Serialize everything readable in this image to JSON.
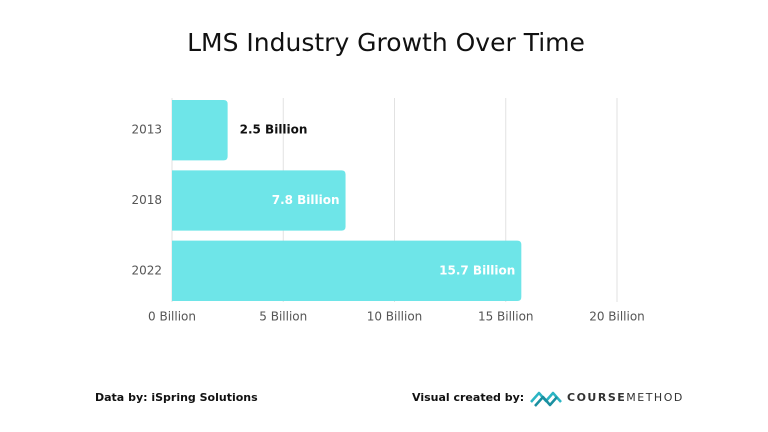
{
  "chart_data": {
    "type": "bar",
    "orientation": "horizontal",
    "title": "LMS Industry Growth Over Time",
    "categories": [
      "2013",
      "2018",
      "2022"
    ],
    "values": [
      2.5,
      7.8,
      15.7
    ],
    "value_labels": [
      "2.5 Billion",
      "7.8 Billion",
      "15.7 Billion"
    ],
    "color": "#6ee5e8",
    "xlim": [
      0,
      20
    ],
    "xticks": [
      {
        "value": 0,
        "label": "0 Billion"
      },
      {
        "value": 5,
        "label": "5 Billion"
      },
      {
        "value": 10,
        "label": "10 Billion"
      },
      {
        "value": 15,
        "label": "15 Billion"
      },
      {
        "value": 20,
        "label": "20 Billion"
      }
    ],
    "grid": true
  },
  "footer": {
    "source": "Data by: iSpring Solutions",
    "credit": "Visual created by:",
    "logo_bold": "COURSE",
    "logo_light": "METHOD"
  }
}
